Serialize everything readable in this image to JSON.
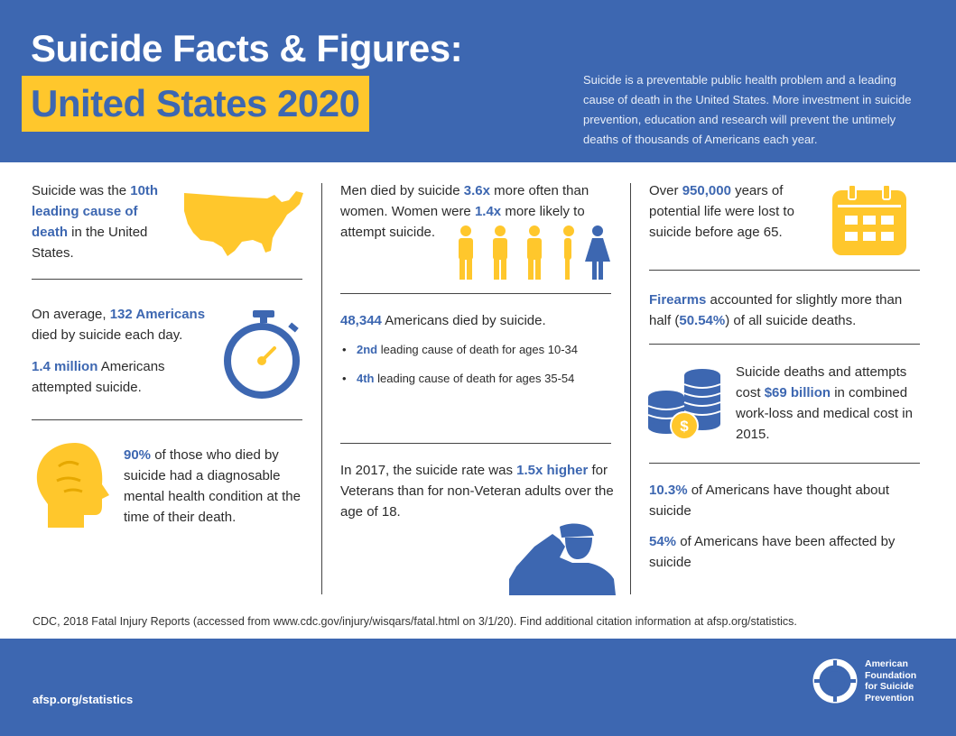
{
  "header": {
    "title_line1": "Suicide Facts & Figures:",
    "title_line2": "United States 2020",
    "intro": "Suicide is a preventable public health problem and a leading cause of death in the United States. More investment in suicide prevention, education and research will prevent the untimely deaths of thousands of Americans each year."
  },
  "col1": {
    "fact1": {
      "pre": "Suicide was the ",
      "highlight": "10th leading cause of death",
      "post": " in the United States."
    },
    "fact2": {
      "pre": "On average, ",
      "highlight": "132 Americans",
      "post": " died by suicide each day."
    },
    "fact3": {
      "highlight": "1.4 million",
      "post": " Americans attempted suicide."
    },
    "fact4": {
      "highlight": "90%",
      "post": " of those who died by suicide had a diagnosable mental health condition at the time of their death."
    }
  },
  "col2": {
    "fact1": {
      "pre": "Men died by suicide ",
      "highlight1": "3.6x",
      "mid": " more often than women. Women were ",
      "highlight2": "1.4x",
      "post": " more likely to attempt suicide."
    },
    "fact2": {
      "highlight": "48,344",
      "post": " Americans died by suicide."
    },
    "bullets": [
      {
        "highlight": "2nd",
        "post": " leading cause of death for ages 10-34"
      },
      {
        "highlight": "4th",
        "post": " leading cause of death for ages 35-54"
      }
    ],
    "fact3": {
      "pre": "In 2017, the suicide rate was ",
      "highlight": "1.5x higher",
      "post": " for Veterans than for non-Veteran adults over the age of 18."
    }
  },
  "col3": {
    "fact1": {
      "pre": "Over ",
      "highlight": "950,000",
      "post": " years of potential life were lost to suicide before age 65."
    },
    "fact2": {
      "highlight1": "Firearms",
      "mid": " accounted for slightly more than half (",
      "highlight2": "50.54%",
      "post": ") of all suicide deaths."
    },
    "fact3": {
      "pre": "Suicide deaths and attempts cost ",
      "highlight": "$69 billion",
      "post": " in combined work-loss and medical cost in 2015."
    },
    "fact4": {
      "highlight": "10.3%",
      "post": " of Americans have thought about suicide"
    },
    "fact5": {
      "highlight": "54%",
      "post": " of Americans have been affected by suicide"
    }
  },
  "citation": "CDC, 2018 Fatal Injury Reports (accessed from www.cdc.gov/injury/wisqars/fatal.html on 3/1/20). Find additional citation information at afsp.org/statistics.",
  "footer": {
    "url": "afsp.org/statistics",
    "org_line1": "American",
    "org_line2": "Foundation",
    "org_line3": "for Suicide",
    "org_line4": "Prevention"
  },
  "icons": {
    "us_map": "us-map-icon",
    "stopwatch": "stopwatch-icon",
    "head": "head-icon",
    "people": "people-icon",
    "soldier": "saluting-soldier-icon",
    "calendar": "calendar-icon",
    "coins": "coins-icon",
    "logo": "lifebuoy-logo-icon"
  },
  "colors": {
    "blue": "#3d67b1",
    "yellow": "#ffc72c"
  }
}
